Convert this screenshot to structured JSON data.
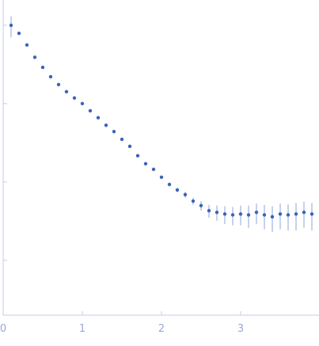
{
  "chart_data": {
    "type": "scatter",
    "x": [
      0.1,
      0.2,
      0.3,
      0.4,
      0.5,
      0.6,
      0.7,
      0.8,
      0.9,
      1.0,
      1.1,
      1.2,
      1.3,
      1.4,
      1.5,
      1.6,
      1.7,
      1.8,
      1.9,
      2.0,
      2.1,
      2.2,
      2.3,
      2.4,
      2.5,
      2.6,
      2.7,
      2.8,
      2.9,
      3.0,
      3.1,
      3.2,
      3.3,
      3.4,
      3.5,
      3.6,
      3.7,
      3.8,
      3.9
    ],
    "series": [
      {
        "color": "#3b64b8",
        "error_color": "#b4c2e4",
        "values": [
          1.0,
          0.79,
          0.56,
          0.39,
          0.29,
          0.22,
          0.175,
          0.142,
          0.118,
          0.1,
          0.081,
          0.066,
          0.053,
          0.044,
          0.035,
          0.0285,
          0.0216,
          0.0171,
          0.0145,
          0.0115,
          0.0093,
          0.0079,
          0.0069,
          0.0057,
          0.005,
          0.0043,
          0.0041,
          0.0039,
          0.0038,
          0.0039,
          0.0038,
          0.0041,
          0.0038,
          0.0036,
          0.0039,
          0.0038,
          0.0039,
          0.0041,
          0.0039
        ],
        "errors": [
          0.3,
          0.01,
          0.005,
          0.003,
          0.002,
          0.0015,
          0.0012,
          0.001,
          0.0009,
          0.0008,
          0.0007,
          0.0006,
          0.0006,
          0.0005,
          0.0005,
          0.0005,
          0.0005,
          0.0005,
          0.0005,
          0.0005,
          0.0005,
          0.0005,
          0.0006,
          0.0006,
          0.0007,
          0.0008,
          0.0009,
          0.001,
          0.001,
          0.0011,
          0.0012,
          0.0012,
          0.0013,
          0.0013,
          0.0014,
          0.0014,
          0.0015,
          0.0015,
          0.0015
        ]
      }
    ],
    "xlim": [
      0,
      3.99
    ],
    "xticks": [
      0,
      1,
      2,
      3
    ],
    "ylim": [
      0.0002,
      2.1
    ],
    "yticks": [
      1,
      0.1,
      0.01,
      0.001
    ],
    "log_y": true,
    "axis_color": "#c4cce4",
    "tick_label_color": "#9aa8d4"
  }
}
